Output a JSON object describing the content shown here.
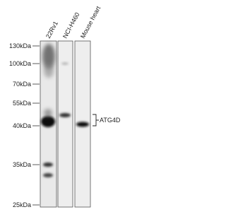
{
  "lanes": [
    "22Rv1",
    "NCI-H460",
    "Mouse heart"
  ],
  "markers": [
    "130kDa",
    "100kDa",
    "70kDa",
    "55kDa",
    "40kDa",
    "35kDa",
    "25kDa"
  ],
  "target": "ATG4D"
}
